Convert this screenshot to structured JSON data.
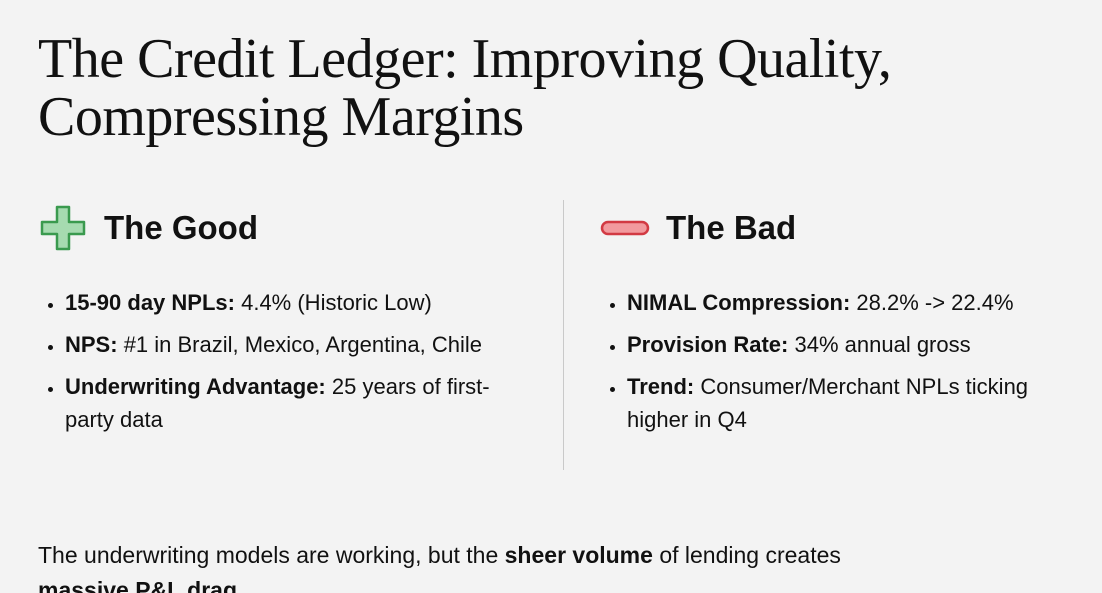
{
  "title_lines": [
    "The Credit Ledger: Improving Quality,",
    "Compressing Margins"
  ],
  "columns": [
    {
      "heading": "The Good",
      "items": [
        {
          "label": "15-90 day NPLs:",
          "text": "4.4% (Historic Low)"
        },
        {
          "label": "NPS:",
          "text": "#1 in Brazil, Mexico, Argentina, Chile"
        },
        {
          "label": "Underwriting Advantage:",
          "text": "25 years of first-party data"
        }
      ]
    },
    {
      "heading": "The Bad",
      "items": [
        {
          "label": "NIMAL Compression:",
          "text": "28.2% -> 22.4%"
        },
        {
          "label": "Provision Rate:",
          "text": "34% annual gross"
        },
        {
          "label": "Trend:",
          "text": "Consumer/Merchant NPLs ticking higher in Q4"
        }
      ]
    }
  ],
  "footer": {
    "parts": [
      "The underwriting models are working, but the",
      "sheer volume",
      "of lending creates",
      "massive P&L drag",
      "."
    ]
  }
}
